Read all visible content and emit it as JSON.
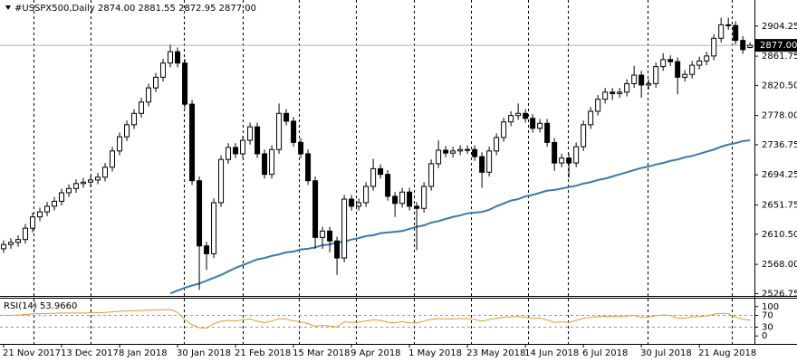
{
  "chart_data": {
    "type": "candlestick",
    "title": "#USSPX500,Daily  2874.00 2881.55 2872.95 2877.00",
    "open": [
      2590,
      2596,
      2599,
      2603,
      2619,
      2635,
      2642,
      2650,
      2657,
      2669,
      2675,
      2682,
      2684,
      2687,
      2691,
      2705,
      2728,
      2748,
      2765,
      2781,
      2797,
      2817,
      2832,
      2852,
      2868,
      2852,
      2794,
      2686,
      2594,
      2583,
      2655,
      2716,
      2733,
      2724,
      2743,
      2762,
      2724,
      2695,
      2730,
      2781,
      2770,
      2740,
      2724,
      2686,
      2606,
      2615,
      2601,
      2577,
      2660,
      2650,
      2655,
      2678,
      2703,
      2695,
      2664,
      2654,
      2670,
      2650,
      2647,
      2678,
      2710,
      2729,
      2725,
      2728,
      2730,
      2730,
      2720,
      2698,
      2728,
      2747,
      2769,
      2778,
      2781,
      2774,
      2760,
      2767,
      2740,
      2711,
      2718,
      2711,
      2734,
      2765,
      2784,
      2801,
      2811,
      2809,
      2811,
      2823,
      2835,
      2821,
      2823,
      2847,
      2857,
      2854,
      2832,
      2836,
      2849,
      2855,
      2862,
      2887,
      2906,
      2905,
      2884,
      2874
    ],
    "high": [
      2602,
      2605,
      2609,
      2625,
      2641,
      2648,
      2656,
      2663,
      2675,
      2681,
      2688,
      2690,
      2693,
      2697,
      2711,
      2734,
      2754,
      2771,
      2787,
      2803,
      2823,
      2838,
      2858,
      2878,
      2874,
      2858,
      2800,
      2692,
      2600,
      2661,
      2722,
      2739,
      2739,
      2749,
      2768,
      2768,
      2730,
      2736,
      2795,
      2787,
      2776,
      2746,
      2730,
      2692,
      2621,
      2621,
      2607,
      2666,
      2666,
      2661,
      2684,
      2717,
      2709,
      2701,
      2670,
      2676,
      2676,
      2656,
      2684,
      2716,
      2743,
      2735,
      2734,
      2736,
      2736,
      2736,
      2726,
      2734,
      2753,
      2775,
      2784,
      2795,
      2787,
      2780,
      2773,
      2773,
      2746,
      2724,
      2724,
      2740,
      2771,
      2790,
      2807,
      2817,
      2817,
      2817,
      2829,
      2848,
      2841,
      2829,
      2853,
      2866,
      2863,
      2860,
      2842,
      2855,
      2861,
      2868,
      2893,
      2916,
      2916,
      2911,
      2890,
      2881.55
    ],
    "low": [
      2584,
      2590,
      2593,
      2597,
      2613,
      2629,
      2636,
      2644,
      2651,
      2663,
      2669,
      2676,
      2678,
      2681,
      2685,
      2699,
      2722,
      2742,
      2759,
      2775,
      2791,
      2811,
      2826,
      2846,
      2846,
      2788,
      2680,
      2532,
      2560,
      2577,
      2649,
      2710,
      2718,
      2718,
      2737,
      2718,
      2689,
      2689,
      2724,
      2764,
      2734,
      2718,
      2680,
      2590,
      2590,
      2585,
      2553,
      2571,
      2644,
      2644,
      2649,
      2672,
      2689,
      2658,
      2635,
      2648,
      2644,
      2588,
      2641,
      2672,
      2704,
      2719,
      2719,
      2722,
      2724,
      2714,
      2676,
      2692,
      2722,
      2741,
      2763,
      2772,
      2768,
      2754,
      2754,
      2734,
      2700,
      2705,
      2690,
      2705,
      2728,
      2759,
      2778,
      2795,
      2800,
      2803,
      2805,
      2817,
      2803,
      2815,
      2817,
      2841,
      2848,
      2808,
      2826,
      2830,
      2843,
      2849,
      2856,
      2881,
      2899,
      2878,
      2865,
      2872.95
    ],
    "close": [
      2596,
      2599,
      2603,
      2619,
      2635,
      2642,
      2650,
      2657,
      2669,
      2675,
      2682,
      2684,
      2687,
      2691,
      2705,
      2728,
      2748,
      2765,
      2781,
      2797,
      2817,
      2832,
      2852,
      2868,
      2852,
      2794,
      2686,
      2594,
      2583,
      2655,
      2716,
      2733,
      2724,
      2743,
      2762,
      2724,
      2695,
      2730,
      2781,
      2770,
      2740,
      2724,
      2686,
      2606,
      2615,
      2601,
      2577,
      2660,
      2650,
      2655,
      2678,
      2703,
      2695,
      2664,
      2654,
      2670,
      2650,
      2647,
      2678,
      2710,
      2729,
      2725,
      2728,
      2730,
      2730,
      2720,
      2698,
      2728,
      2747,
      2769,
      2778,
      2781,
      2774,
      2760,
      2767,
      2740,
      2711,
      2718,
      2711,
      2734,
      2765,
      2784,
      2801,
      2811,
      2809,
      2811,
      2823,
      2835,
      2821,
      2823,
      2847,
      2857,
      2854,
      2832,
      2836,
      2849,
      2855,
      2862,
      2887,
      2906,
      2905,
      2884,
      2871,
      2877
    ],
    "up_color": "#ffffff",
    "down_color": "#000000",
    "outline_color": "#000000",
    "xlim": [
      -0.5,
      103.6
    ],
    "xticks": [
      {
        "value": 0,
        "label": "21 Nov 2017"
      },
      {
        "value": 8,
        "label": "13 Dec 2017"
      },
      {
        "value": 16,
        "label": "8 Jan 2018"
      },
      {
        "value": 24,
        "label": "30 Jan 2018"
      },
      {
        "value": 32,
        "label": "21 Feb 2018"
      },
      {
        "value": 40,
        "label": "15 Mar 2018"
      },
      {
        "value": 48,
        "label": "9 Apr 2018"
      },
      {
        "value": 56,
        "label": "1 May 2018"
      },
      {
        "value": 64,
        "label": "23 May 2018"
      },
      {
        "value": 72,
        "label": "14 Jun 2018"
      },
      {
        "value": 80,
        "label": "6 Jul 2018"
      },
      {
        "value": 88,
        "label": "30 Jul 2018"
      },
      {
        "value": 96,
        "label": "21 Aug 2018"
      }
    ],
    "ylim": [
      2526,
      2941
    ],
    "yticks": [
      2904.25,
      2861.75,
      {
        "value": 2820.5,
        "label": "2820.50"
      },
      {
        "value": 2778,
        "label": "2778.00"
      },
      2736.75,
      2694.25,
      2651.75,
      {
        "value": 2610.5,
        "label": "2610.50"
      },
      {
        "value": 2568,
        "label": "2568.00"
      },
      2526.75
    ],
    "last_price": {
      "value": 2877,
      "label": "2877.00"
    },
    "ma": {
      "color": "#3a78b0",
      "values": [
        null,
        null,
        null,
        null,
        null,
        null,
        null,
        null,
        null,
        null,
        null,
        null,
        null,
        null,
        null,
        null,
        null,
        null,
        null,
        null,
        null,
        null,
        null,
        2527,
        2531,
        2535,
        2538,
        2541,
        2545,
        2549,
        2553,
        2558,
        2563,
        2567,
        2571,
        2575,
        2577,
        2580,
        2582,
        2585,
        2586,
        2589,
        2590,
        2592,
        2595,
        2596,
        2599,
        2600,
        2603,
        2605,
        2608,
        2609,
        2612,
        2613,
        2614,
        2615,
        2618,
        2621,
        2623,
        2627,
        2629,
        2632,
        2635,
        2637,
        2640,
        2641,
        2642,
        2645,
        2650,
        2654,
        2658,
        2660,
        2664,
        2666,
        2669,
        2672,
        2673,
        2675,
        2677,
        2679,
        2682,
        2684,
        2687,
        2689,
        2692,
        2695,
        2698,
        2701,
        2704,
        2706,
        2709,
        2711,
        2714,
        2716,
        2719,
        2721,
        2724,
        2727,
        2730,
        2734,
        2737,
        2739,
        2742,
        2743
      ]
    },
    "rsi": {
      "label": "RSI(14) 53.9660",
      "color": "#e39a2a",
      "ylim": [
        -27,
        127
      ],
      "yticks": [
        100,
        70,
        30,
        0
      ],
      "levels": [
        70,
        30
      ],
      "values": [
        70,
        70,
        71,
        73,
        75,
        76,
        76,
        77,
        78,
        78,
        78,
        78,
        79,
        79,
        80,
        82,
        84,
        85,
        86,
        87,
        88,
        88,
        89,
        90,
        80,
        55,
        38,
        28,
        27,
        42,
        50,
        53,
        51,
        55,
        58,
        50,
        45,
        51,
        59,
        57,
        51,
        48,
        42,
        33,
        36,
        34,
        31,
        48,
        46,
        47,
        51,
        55,
        53,
        47,
        45,
        49,
        45,
        44,
        51,
        56,
        59,
        58,
        58,
        59,
        59,
        56,
        50,
        56,
        60,
        64,
        65,
        66,
        64,
        60,
        61,
        54,
        46,
        48,
        46,
        53,
        60,
        63,
        66,
        67,
        66,
        66,
        68,
        70,
        64,
        65,
        69,
        71,
        70,
        60,
        61,
        65,
        66,
        68,
        74,
        77,
        76,
        64,
        57,
        53.966
      ]
    }
  }
}
